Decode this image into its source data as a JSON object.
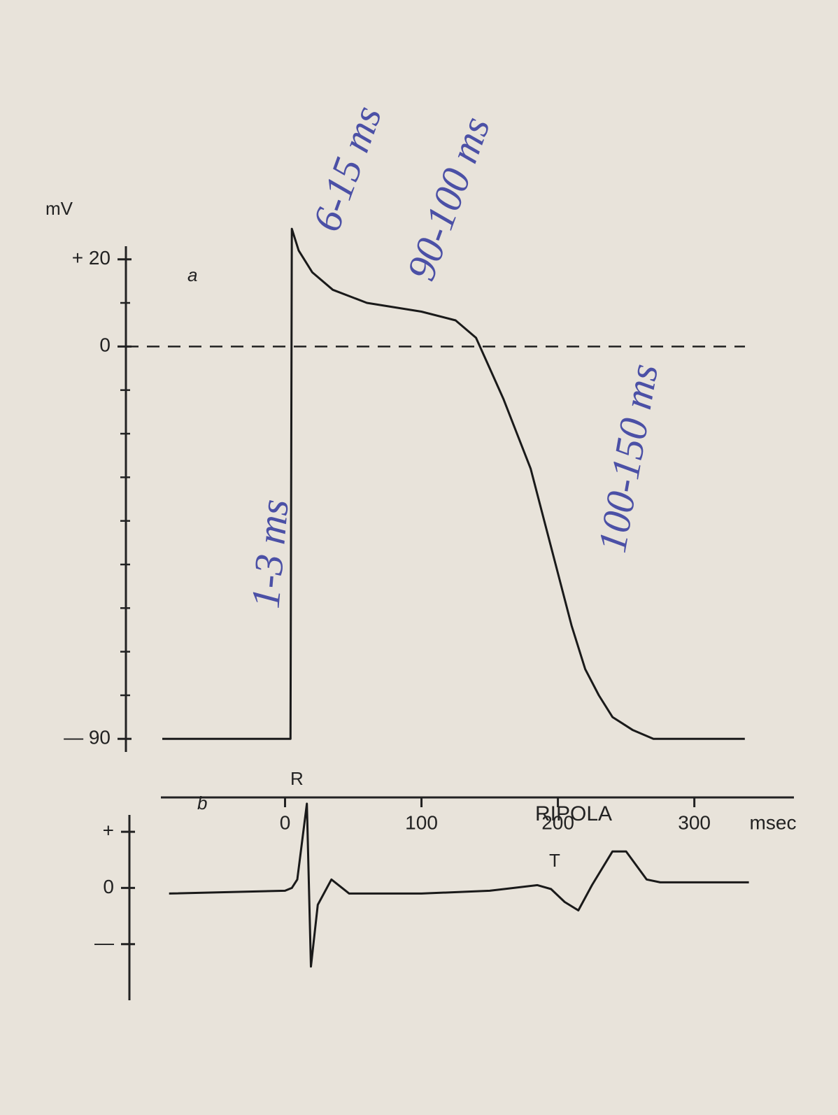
{
  "chart_data": [
    {
      "type": "line",
      "panel_label": "a",
      "y_label": "mV",
      "x": [
        -90,
        4,
        5,
        10,
        20,
        35,
        60,
        100,
        125,
        140,
        150,
        160,
        170,
        180,
        190,
        200,
        210,
        220,
        230,
        240,
        255,
        270,
        337
      ],
      "values": [
        -90,
        -90,
        27,
        22,
        17,
        13,
        10,
        8,
        6,
        2,
        -5,
        -12,
        -20,
        -28,
        -40,
        -52,
        -64,
        -74,
        -80,
        -85,
        -88,
        -90,
        -90
      ],
      "color": "#1a1a1a",
      "xlim": [
        -91,
        373
      ],
      "ylim": [
        -93,
        23
      ],
      "yticks": [
        {
          "value": 20,
          "label": "+ 20"
        },
        0,
        {
          "value": -90,
          "label": "— 90"
        }
      ],
      "minor_yticks": [
        10,
        -10,
        -20,
        -30,
        -40,
        -50,
        -60,
        -70,
        -80
      ],
      "hline": 0,
      "annotations": [
        "6-15 ms",
        "90-100 ms",
        "100-150 ms",
        "1-3 ms"
      ]
    },
    {
      "type": "line",
      "panel_label": "b",
      "x": [
        -85,
        0,
        5,
        9,
        16,
        19,
        24,
        34,
        47,
        100,
        150,
        185,
        195,
        205,
        215,
        225,
        240,
        250,
        265,
        275,
        300,
        340
      ],
      "values": [
        -0.1,
        -0.05,
        0.0,
        0.15,
        1.5,
        -1.4,
        -0.3,
        0.15,
        -0.1,
        -0.1,
        -0.05,
        0.05,
        -0.02,
        -0.25,
        -0.4,
        0.05,
        0.65,
        0.65,
        0.15,
        0.1,
        0.1,
        0.1
      ],
      "color": "#1a1a1a",
      "xlim": [
        -91,
        373
      ],
      "ylim": [
        -2.0,
        1.3
      ],
      "yticks": [
        {
          "value": 1,
          "label": "+"
        },
        0,
        {
          "value": -1,
          "label": "—"
        }
      ],
      "xticks": [
        0,
        100,
        200,
        300
      ],
      "x_label": "msec",
      "annotations": [
        "R",
        "T",
        "RIPOLA"
      ]
    }
  ]
}
